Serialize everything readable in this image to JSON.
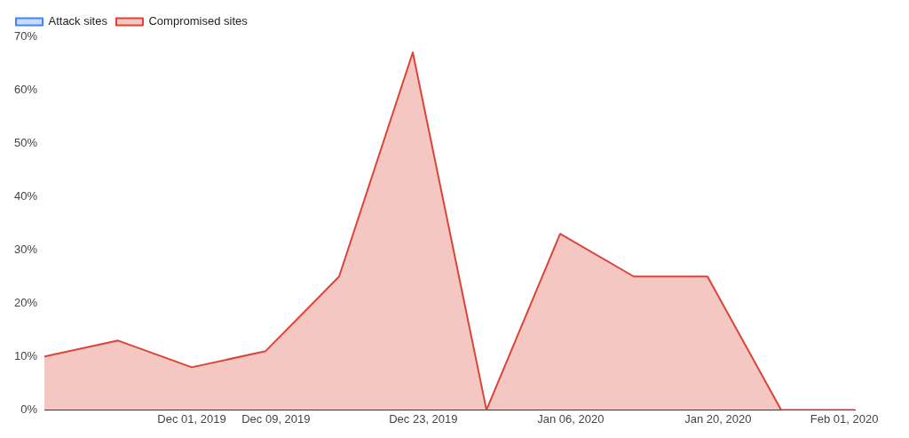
{
  "chart_data": {
    "type": "area",
    "x": [
      "2019-11-17",
      "2019-11-24",
      "2019-12-01",
      "2019-12-08",
      "2019-12-15",
      "2019-12-22",
      "2019-12-29",
      "2020-01-05",
      "2020-01-12",
      "2020-01-19",
      "2020-01-26",
      "2020-02-02"
    ],
    "series": [
      {
        "name": "Attack sites",
        "color": "#4285f4",
        "values": [
          null,
          null,
          null,
          null,
          null,
          null,
          null,
          null,
          null,
          null,
          null,
          null
        ]
      },
      {
        "name": "Compromised sites",
        "color": "#db4437",
        "values": [
          10,
          13,
          8,
          11,
          25,
          67,
          0,
          33,
          25,
          25,
          0,
          0
        ]
      }
    ],
    "xlim": [
      "2019-11-17",
      "2020-02-02"
    ],
    "xticks": [
      {
        "value": "2019-12-01",
        "label": "Dec 01, 2019"
      },
      {
        "value": "2019-12-09",
        "label": "Dec 09, 2019"
      },
      {
        "value": "2019-12-23",
        "label": "Dec 23, 2019"
      },
      {
        "value": "2020-01-06",
        "label": "Jan 06, 2020"
      },
      {
        "value": "2020-01-20",
        "label": "Jan 20, 2020"
      },
      {
        "value": "2020-02-01",
        "label": "Feb 01, 2020"
      }
    ],
    "ylim": [
      0,
      70
    ],
    "yticks": [
      {
        "value": 0,
        "label": "0%"
      },
      {
        "value": 10,
        "label": "10%"
      },
      {
        "value": 20,
        "label": "20%"
      },
      {
        "value": 30,
        "label": "30%"
      },
      {
        "value": 40,
        "label": "40%"
      },
      {
        "value": 50,
        "label": "50%"
      },
      {
        "value": 60,
        "label": "60%"
      },
      {
        "value": 70,
        "label": "70%"
      }
    ],
    "grid": false,
    "legend": "top left"
  }
}
